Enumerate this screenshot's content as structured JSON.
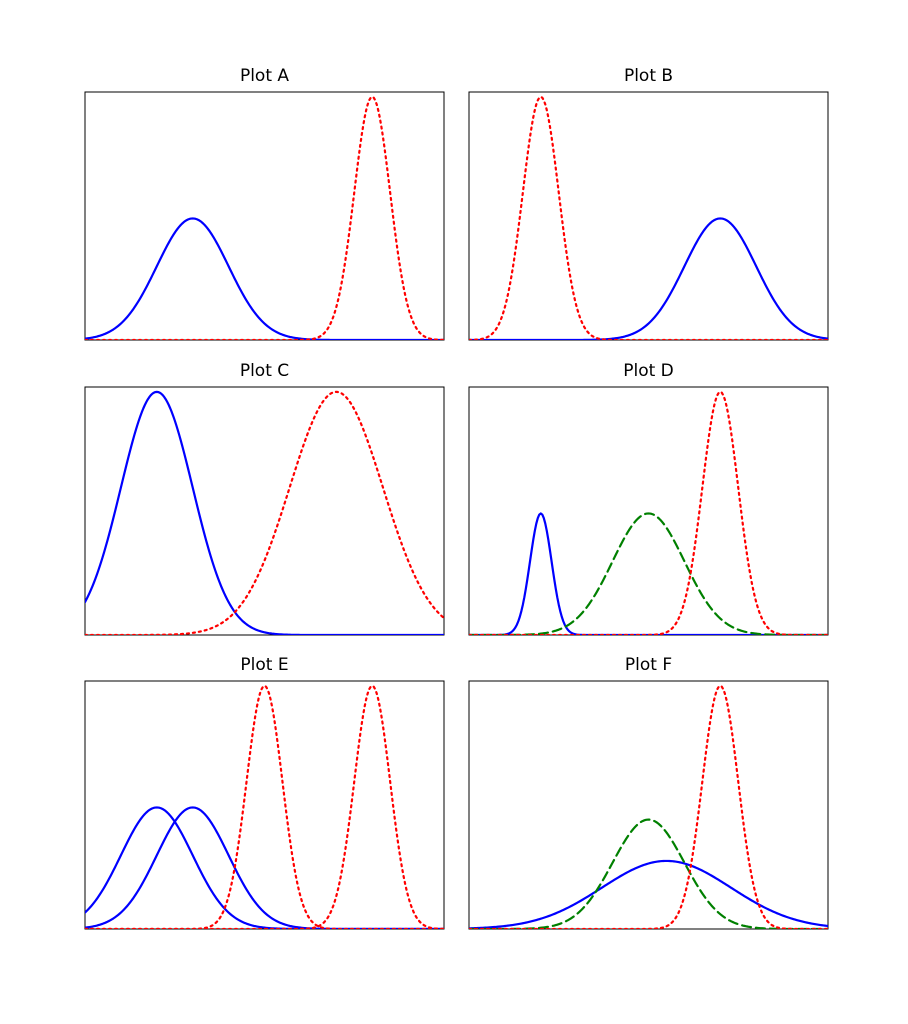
{
  "chart_data": [
    {
      "type": "line",
      "title": "Plot A",
      "xlim": [
        0,
        10
      ],
      "ylim": [
        0,
        1.02
      ],
      "series": [
        {
          "style": "solid",
          "color": "#0000ff",
          "mu": 3.0,
          "sigma": 1.0,
          "amp": 0.5
        },
        {
          "style": "dotted",
          "color": "#ff0000",
          "mu": 8.0,
          "sigma": 0.5,
          "amp": 1.0
        }
      ]
    },
    {
      "type": "line",
      "title": "Plot B",
      "xlim": [
        0,
        10
      ],
      "ylim": [
        0,
        1.02
      ],
      "series": [
        {
          "style": "solid",
          "color": "#0000ff",
          "mu": 7.0,
          "sigma": 1.0,
          "amp": 0.5
        },
        {
          "style": "dotted",
          "color": "#ff0000",
          "mu": 2.0,
          "sigma": 0.5,
          "amp": 1.0
        }
      ]
    },
    {
      "type": "line",
      "title": "Plot C",
      "xlim": [
        0,
        10
      ],
      "ylim": [
        0,
        1.02
      ],
      "series": [
        {
          "style": "solid",
          "color": "#0000ff",
          "mu": 2.0,
          "sigma": 1.0,
          "amp": 1.0
        },
        {
          "style": "dotted",
          "color": "#ff0000",
          "mu": 7.0,
          "sigma": 1.3,
          "amp": 1.0
        }
      ]
    },
    {
      "type": "line",
      "title": "Plot D",
      "xlim": [
        0,
        10
      ],
      "ylim": [
        0,
        1.02
      ],
      "series": [
        {
          "style": "solid",
          "color": "#0000ff",
          "mu": 2.0,
          "sigma": 0.3,
          "amp": 0.5
        },
        {
          "style": "dashed",
          "color": "#008000",
          "mu": 5.0,
          "sigma": 1.0,
          "amp": 0.5
        },
        {
          "style": "dotted",
          "color": "#ff0000",
          "mu": 7.0,
          "sigma": 0.5,
          "amp": 1.0
        }
      ]
    },
    {
      "type": "line",
      "title": "Plot E",
      "xlim": [
        0,
        10
      ],
      "ylim": [
        0,
        1.02
      ],
      "series": [
        {
          "style": "solid",
          "color": "#0000ff",
          "mu": 2.0,
          "sigma": 1.0,
          "amp": 0.5
        },
        {
          "style": "solid",
          "color": "#0000ff",
          "mu": 3.0,
          "sigma": 1.0,
          "amp": 0.5
        },
        {
          "style": "dotted",
          "color": "#ff0000",
          "mu": 5.0,
          "sigma": 0.5,
          "amp": 1.0
        },
        {
          "style": "dotted",
          "color": "#ff0000",
          "mu": 8.0,
          "sigma": 0.5,
          "amp": 1.0
        }
      ]
    },
    {
      "type": "line",
      "title": "Plot F",
      "xlim": [
        0,
        10
      ],
      "ylim": [
        0,
        1.02
      ],
      "series": [
        {
          "style": "solid",
          "color": "#0000ff",
          "mu": 5.5,
          "sigma": 1.8,
          "amp": 0.28
        },
        {
          "style": "dashed",
          "color": "#008000",
          "mu": 5.0,
          "sigma": 1.0,
          "amp": 0.45
        },
        {
          "style": "dotted",
          "color": "#ff0000",
          "mu": 7.0,
          "sigma": 0.5,
          "amp": 1.0
        }
      ]
    }
  ]
}
